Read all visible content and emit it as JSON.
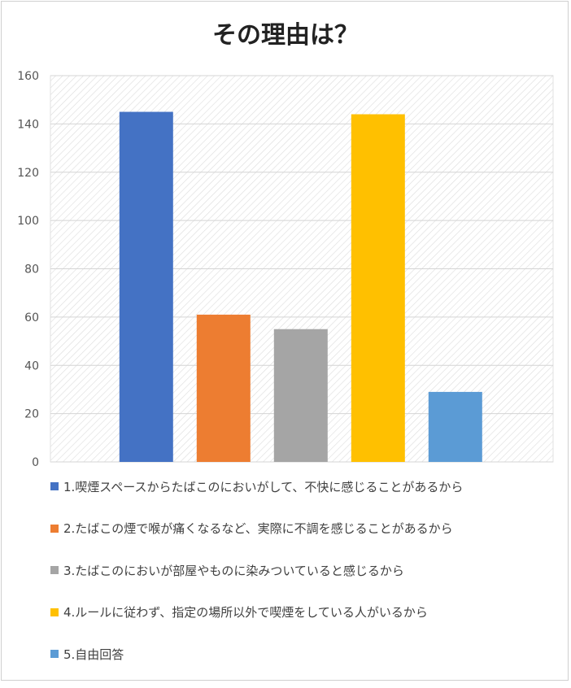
{
  "chart_data": {
    "type": "bar",
    "title": "その理由は？",
    "ylim": [
      0,
      160
    ],
    "yticks": [
      0,
      20,
      40,
      60,
      80,
      100,
      120,
      140,
      160
    ],
    "grid": true,
    "legend_position": "bottom",
    "categories": [
      "1.喫煙スペースからたばこのにおいがして、不快に感じることがあるから",
      "2.たばこの煙で喉が痛くなるなど、実際に不調を感じることがあるから",
      "3.たばこのにおいが部屋やものに染みついていると感じるから",
      "4.ルールに従わず、指定の場所以外で喫煙をしている人がいるから",
      "5.自由回答"
    ],
    "values": [
      145,
      61,
      55,
      144,
      29
    ],
    "colors": [
      "#4472C4",
      "#ED7D31",
      "#A5A5A5",
      "#FFC000",
      "#5B9BD5"
    ]
  }
}
